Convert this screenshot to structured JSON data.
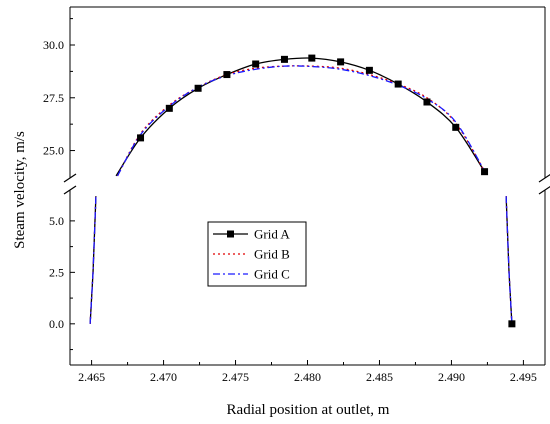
{
  "chart_data": {
    "type": "line",
    "title": "",
    "xlabel": "Radial position at outlet, m",
    "ylabel": "Steam velocity, m/s",
    "xlim": [
      2.4635,
      2.4965
    ],
    "ylim_lower": [
      -2.0,
      6.5
    ],
    "ylim_upper": [
      23.7,
      31.8
    ],
    "y_axis_break": true,
    "x_ticks": [
      "2.465",
      "2.470",
      "2.475",
      "2.480",
      "2.485",
      "2.490",
      "2.495"
    ],
    "y_ticks_lower": [
      "0.0",
      "2.5",
      "5.0"
    ],
    "y_ticks_upper": [
      "25.0",
      "27.5",
      "30.0"
    ],
    "legend_position": "center-left",
    "series": [
      {
        "name": "Grid A",
        "color": "#000000",
        "line_style": "solid",
        "marker": "square",
        "lower_points": [
          [
            2.4649,
            0.0
          ],
          [
            2.4651,
            2.5
          ],
          [
            2.4653,
            6.2
          ]
        ],
        "lower_points_right": [
          [
            2.4938,
            6.2
          ],
          [
            2.494,
            2.5
          ],
          [
            2.4942,
            0.0
          ]
        ],
        "upper_points": [
          [
            2.4667,
            23.8
          ],
          [
            2.4684,
            25.6
          ],
          [
            2.4704,
            27.0
          ],
          [
            2.4724,
            27.95
          ],
          [
            2.4744,
            28.6
          ],
          [
            2.4764,
            29.1
          ],
          [
            2.4784,
            29.32
          ],
          [
            2.4803,
            29.38
          ],
          [
            2.4823,
            29.2
          ],
          [
            2.4843,
            28.8
          ],
          [
            2.4863,
            28.15
          ],
          [
            2.4883,
            27.3
          ],
          [
            2.4903,
            26.1
          ],
          [
            2.4923,
            24.0
          ]
        ],
        "marker_points": [
          [
            2.4684,
            25.6
          ],
          [
            2.4704,
            27.0
          ],
          [
            2.4724,
            27.95
          ],
          [
            2.4744,
            28.6
          ],
          [
            2.4764,
            29.1
          ],
          [
            2.4784,
            29.32
          ],
          [
            2.4803,
            29.38
          ],
          [
            2.4823,
            29.2
          ],
          [
            2.4843,
            28.8
          ],
          [
            2.4863,
            28.15
          ],
          [
            2.4883,
            27.3
          ],
          [
            2.4903,
            26.1
          ],
          [
            2.4923,
            24.0
          ],
          [
            2.4942,
            0.0
          ]
        ]
      },
      {
        "name": "Grid B",
        "color": "#e00000",
        "line_style": "dotted",
        "marker": "none",
        "lower_points": [
          [
            2.4649,
            0.0
          ],
          [
            2.4651,
            2.5
          ],
          [
            2.4653,
            6.2
          ]
        ],
        "lower_points_right": [
          [
            2.4938,
            6.2
          ],
          [
            2.494,
            2.5
          ],
          [
            2.4942,
            0.0
          ]
        ],
        "upper_points": [
          [
            2.4668,
            23.8
          ],
          [
            2.4684,
            25.8
          ],
          [
            2.4704,
            27.15
          ],
          [
            2.4724,
            28.0
          ],
          [
            2.4744,
            28.6
          ],
          [
            2.4764,
            28.9
          ],
          [
            2.4784,
            29.0
          ],
          [
            2.4803,
            29.0
          ],
          [
            2.4823,
            28.9
          ],
          [
            2.4843,
            28.6
          ],
          [
            2.4863,
            28.15
          ],
          [
            2.4883,
            27.5
          ],
          [
            2.4903,
            26.3
          ],
          [
            2.4924,
            23.9
          ]
        ]
      },
      {
        "name": "Grid C",
        "color": "#1a1aff",
        "line_style": "dashdot",
        "marker": "none",
        "lower_points": [
          [
            2.4649,
            0.0
          ],
          [
            2.4651,
            2.5
          ],
          [
            2.4653,
            6.2
          ]
        ],
        "lower_points_right": [
          [
            2.4938,
            6.2
          ],
          [
            2.494,
            2.5
          ],
          [
            2.4942,
            0.0
          ]
        ],
        "upper_points": [
          [
            2.4668,
            23.8
          ],
          [
            2.4684,
            25.75
          ],
          [
            2.4704,
            27.1
          ],
          [
            2.4724,
            28.0
          ],
          [
            2.4744,
            28.55
          ],
          [
            2.4764,
            28.85
          ],
          [
            2.4784,
            29.0
          ],
          [
            2.4803,
            28.98
          ],
          [
            2.4823,
            28.85
          ],
          [
            2.4843,
            28.55
          ],
          [
            2.4863,
            28.1
          ],
          [
            2.4883,
            27.45
          ],
          [
            2.4903,
            26.35
          ],
          [
            2.4924,
            23.9
          ]
        ]
      }
    ]
  }
}
